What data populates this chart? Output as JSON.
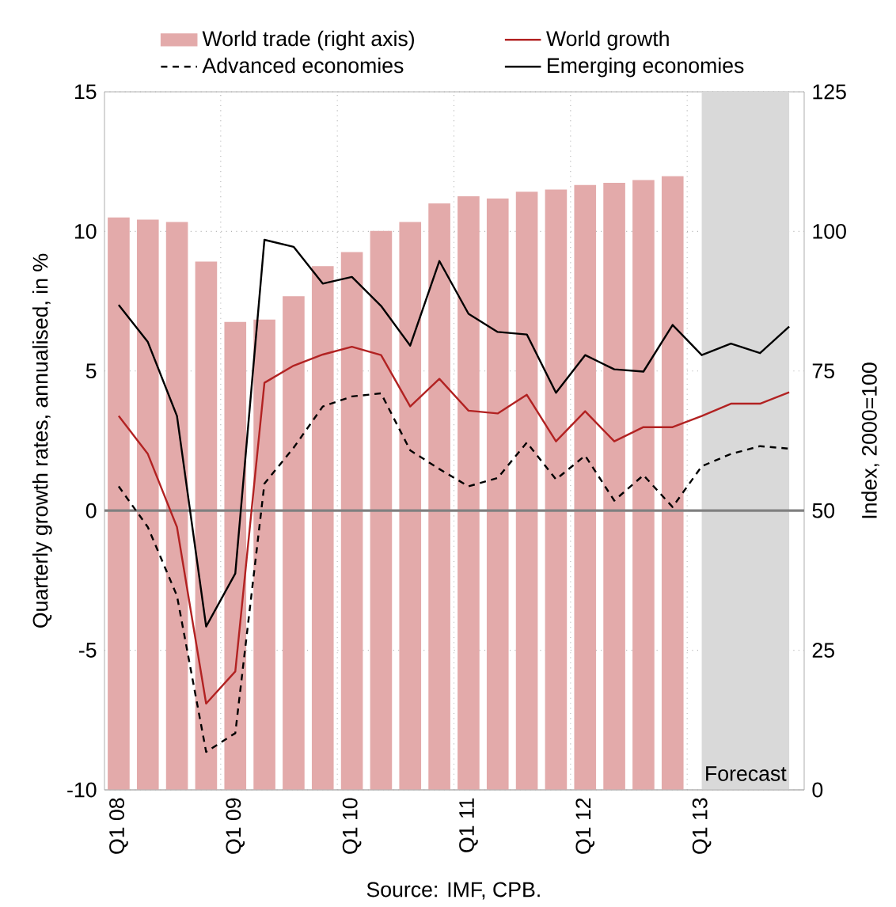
{
  "chart_data": {
    "type": "line",
    "x": [
      "2008-02-15",
      "2008-05-15",
      "2008-08-15",
      "2008-11-15",
      "2009-02-15",
      "2009-05-15",
      "2009-08-15",
      "2009-11-15",
      "2010-02-15",
      "2010-05-15",
      "2010-08-15",
      "2010-11-15",
      "2011-02-15",
      "2011-05-15",
      "2011-08-15",
      "2011-11-15",
      "2012-02-15",
      "2012-05-15",
      "2012-08-15",
      "2012-11-15",
      "2013-02-15",
      "2013-05-15",
      "2013-08-15",
      "2013-11-15"
    ],
    "series": [
      {
        "name": "World trade (right axis)",
        "type": "bar",
        "axis": "y2",
        "color": "#e3aaaa",
        "values": [
          102.5,
          102.1,
          101.7,
          94.6,
          83.8,
          84.2,
          88.4,
          93.8,
          96.3,
          100.1,
          101.7,
          105.0,
          106.3,
          105.9,
          107.1,
          107.5,
          108.3,
          108.7,
          109.2,
          109.9,
          null,
          null,
          null,
          null
        ]
      },
      {
        "name": "World growth",
        "color": "#b22222",
        "line_style": "solid",
        "values": [
          3.39,
          2.03,
          -0.59,
          -6.91,
          -5.76,
          4.58,
          5.19,
          5.59,
          5.87,
          5.57,
          3.73,
          4.72,
          3.58,
          3.48,
          4.15,
          2.48,
          3.56,
          2.48,
          2.99,
          2.99,
          3.39,
          3.83,
          3.83,
          4.24
        ]
      },
      {
        "name": "Advanced economies",
        "color": "#000000",
        "line_style": "dashed",
        "values": [
          0.87,
          -0.59,
          -3.05,
          -8.64,
          -7.97,
          0.97,
          2.25,
          3.73,
          4.09,
          4.2,
          2.16,
          1.49,
          0.87,
          1.17,
          2.44,
          1.12,
          1.97,
          0.36,
          1.27,
          0.13,
          1.59,
          2.03,
          2.31,
          2.22
        ]
      },
      {
        "name": "Emerging economies",
        "color": "#000000",
        "line_style": "solid",
        "values": [
          7.37,
          6.04,
          3.39,
          -4.15,
          -2.25,
          9.7,
          9.45,
          8.13,
          8.37,
          7.33,
          5.91,
          8.94,
          7.05,
          6.4,
          6.31,
          4.22,
          5.57,
          5.06,
          4.98,
          6.65,
          5.57,
          5.98,
          5.64,
          6.59
        ]
      }
    ],
    "xlim": [
      "2008-01-01",
      "2014-01-01"
    ],
    "xticks": [
      {
        "value": "2008-02-15",
        "label": "Q1 08"
      },
      {
        "value": "2009-02-15",
        "label": "Q1 09"
      },
      {
        "value": "2010-02-15",
        "label": "Q1 10"
      },
      {
        "value": "2011-02-15",
        "label": "Q1 11"
      },
      {
        "value": "2012-02-15",
        "label": "Q1 12"
      },
      {
        "value": "2013-02-15",
        "label": "Q1 13"
      }
    ],
    "ylabel": "Quarterly growth rates, annualised, in %",
    "y2label": "Index, 2000=100",
    "ylim": [
      -10,
      15
    ],
    "yticks": [
      -10,
      -5,
      0,
      5,
      10,
      15
    ],
    "y2lim": [
      0,
      125
    ],
    "y2ticks": [
      0,
      25,
      50,
      75,
      100,
      125
    ],
    "ref_lines": [
      {
        "axis": "y",
        "value": 0,
        "color": "#808080"
      }
    ],
    "bands": [
      {
        "axis": "x",
        "from": "2013-02-15",
        "to": "2013-11-15",
        "label": "Forecast",
        "color": "#d9d9d9"
      }
    ],
    "annotations": [
      "Source: IMF, CPB."
    ],
    "grid": true,
    "legend": "top"
  }
}
